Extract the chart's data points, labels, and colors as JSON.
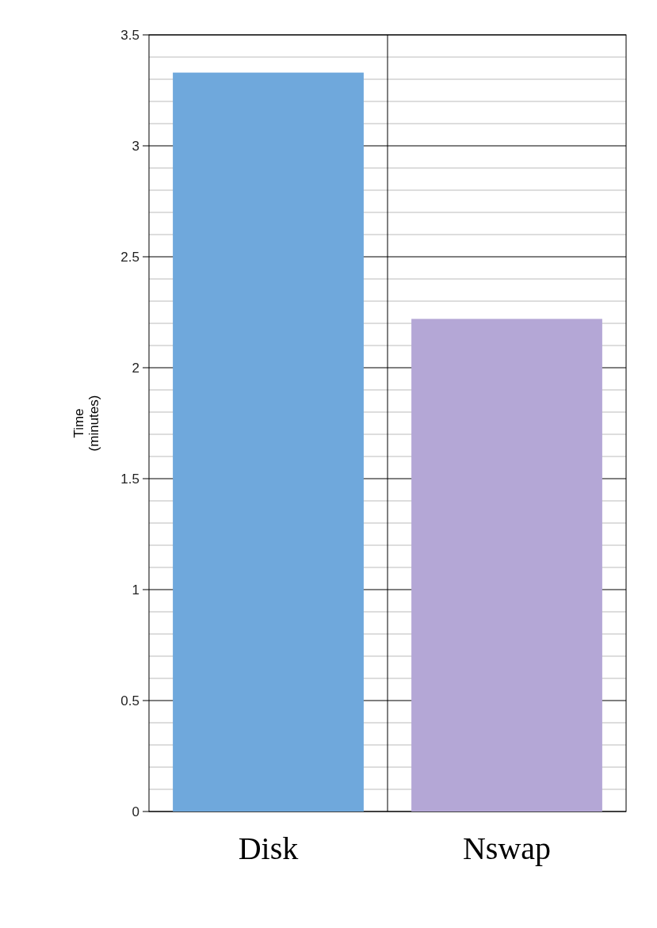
{
  "chart_data": {
    "type": "bar",
    "ylabel": "Time (minutes)",
    "categories": [
      "Disk",
      "Nswap"
    ],
    "values": [
      3.33,
      2.22
    ],
    "colors": [
      "#6fa8dc",
      "#b4a7d6"
    ],
    "ylim": [
      0,
      3.5
    ],
    "yticks": [
      0,
      {
        "value": 0.1,
        "label": null
      },
      {
        "value": 0.2,
        "label": null
      },
      {
        "value": 0.3,
        "label": null
      },
      {
        "value": 0.4,
        "label": null
      },
      0.5,
      {
        "value": 0.6,
        "label": null
      },
      {
        "value": 0.7,
        "label": null
      },
      {
        "value": 0.8,
        "label": null
      },
      {
        "value": 0.9,
        "label": null
      },
      1,
      {
        "value": 1.1,
        "label": null
      },
      {
        "value": 1.2,
        "label": null
      },
      {
        "value": 1.3,
        "label": null
      },
      {
        "value": 1.4,
        "label": null
      },
      1.5,
      {
        "value": 1.6,
        "label": null
      },
      {
        "value": 1.7,
        "label": null
      },
      {
        "value": 1.8,
        "label": null
      },
      {
        "value": 1.9,
        "label": null
      },
      2,
      {
        "value": 2.1,
        "label": null
      },
      {
        "value": 2.2,
        "label": null
      },
      {
        "value": 2.3,
        "label": null
      },
      {
        "value": 2.4,
        "label": null
      },
      2.5,
      {
        "value": 2.6,
        "label": null
      },
      {
        "value": 2.7,
        "label": null
      },
      {
        "value": 2.8,
        "label": null
      },
      {
        "value": 2.9,
        "label": null
      },
      3,
      {
        "value": 3.1,
        "label": null
      },
      {
        "value": 3.2,
        "label": null
      },
      {
        "value": 3.3,
        "label": null
      },
      {
        "value": 3.4,
        "label": null
      },
      3.5
    ],
    "grid": true
  }
}
